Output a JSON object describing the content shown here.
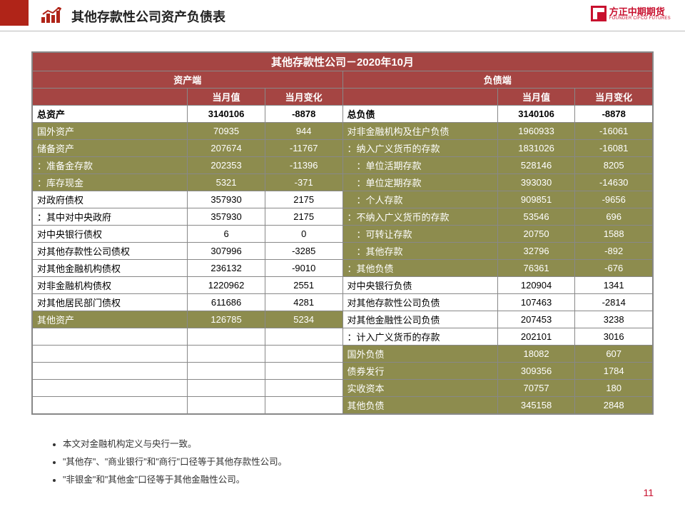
{
  "header": {
    "title": "其他存款性公司资产负债表",
    "logo_cn": "方正中期期货",
    "logo_en": "FOUNDER CIFCO FUTURES"
  },
  "table": {
    "title": "其他存款性公司－2020年10月",
    "left_header": "资产端",
    "right_header": "负债端",
    "col_value": "当月值",
    "col_change": "当月变化",
    "assets": {
      "total_label": "总资产",
      "total_value": "3140106",
      "total_change": "-8878",
      "groups": [
        {
          "style": "olive",
          "rows": [
            {
              "label": "国外资产",
              "value": "70935",
              "change": "944"
            },
            {
              "label": "储备资产",
              "value": "207674",
              "change": "-11767"
            },
            {
              "label": "：准备金存款",
              "value": "202353",
              "change": "-11396"
            },
            {
              "label": "：库存现金",
              "value": "5321",
              "change": "-371"
            }
          ]
        },
        {
          "style": "white",
          "rows": [
            {
              "label": "对政府债权",
              "value": "357930",
              "change": "2175"
            },
            {
              "label": "：其中对中央政府",
              "value": "357930",
              "change": "2175"
            },
            {
              "label": "对中央银行债权",
              "value": "6",
              "change": "0"
            },
            {
              "label": "对其他存款性公司债权",
              "value": "307996",
              "change": "-3285"
            },
            {
              "label": "对其他金融机构债权",
              "value": "236132",
              "change": "-9010"
            },
            {
              "label": "对非金融机构债权",
              "value": "1220962",
              "change": "2551"
            },
            {
              "label": "对其他居民部门债权",
              "value": "611686",
              "change": "4281"
            }
          ]
        },
        {
          "style": "olive",
          "rows": [
            {
              "label": "其他资产",
              "value": "126785",
              "change": "5234"
            }
          ]
        }
      ]
    },
    "liabilities": {
      "total_label": "总负债",
      "total_value": "3140106",
      "total_change": "-8878",
      "groups": [
        {
          "style": "olive",
          "rows": [
            {
              "label": "对非金融机构及住户负债",
              "value": "1960933",
              "change": "-16061"
            },
            {
              "label": "：纳入广义货币的存款",
              "value": "1831026",
              "change": "-16081"
            },
            {
              "label": "　：单位活期存款",
              "value": "528146",
              "change": "8205"
            },
            {
              "label": "　：单位定期存款",
              "value": "393030",
              "change": "-14630"
            },
            {
              "label": "　：个人存款",
              "value": "909851",
              "change": "-9656"
            },
            {
              "label": "：不纳入广义货币的存款",
              "value": "53546",
              "change": "696"
            },
            {
              "label": "　：可转让存款",
              "value": "20750",
              "change": "1588"
            },
            {
              "label": "　：其他存款",
              "value": "32796",
              "change": "-892"
            },
            {
              "label": "：其他负债",
              "value": "76361",
              "change": "-676"
            }
          ]
        },
        {
          "style": "white",
          "rows": [
            {
              "label": "对中央银行负债",
              "value": "120904",
              "change": "1341"
            },
            {
              "label": "对其他存款性公司负债",
              "value": "107463",
              "change": "-2814"
            },
            {
              "label": "对其他金融性公司负债",
              "value": "207453",
              "change": "3238"
            },
            {
              "label": "：计入广义货币的存款",
              "value": "202101",
              "change": "3016"
            }
          ]
        },
        {
          "style": "olive",
          "rows": [
            {
              "label": "国外负债",
              "value": "18082",
              "change": "607"
            },
            {
              "label": "债券发行",
              "value": "309356",
              "change": "1784"
            },
            {
              "label": "实收资本",
              "value": "70757",
              "change": "180"
            },
            {
              "label": "其他负债",
              "value": "345158",
              "change": "2848"
            }
          ]
        }
      ]
    }
  },
  "notes": [
    "本文对金融机构定义与央行一致。",
    "\"其他存\"、\"商业银行\"和\"商行\"口径等于其他存款性公司。",
    "\"非银金\"和\"其他金\"口径等于其他金融性公司。"
  ],
  "page_number": "11",
  "colors": {
    "brand_red": "#b02418",
    "logo_red": "#c8102e",
    "table_header": "#a54543",
    "olive": "#8d8c4e"
  }
}
